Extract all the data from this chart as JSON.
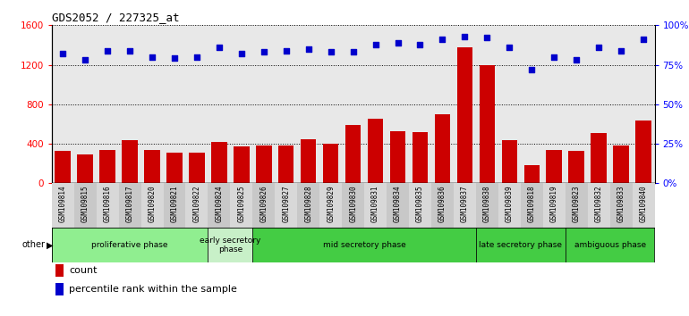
{
  "title": "GDS2052 / 227325_at",
  "samples": [
    "GSM109814",
    "GSM109815",
    "GSM109816",
    "GSM109817",
    "GSM109820",
    "GSM109821",
    "GSM109822",
    "GSM109824",
    "GSM109825",
    "GSM109826",
    "GSM109827",
    "GSM109828",
    "GSM109829",
    "GSM109830",
    "GSM109831",
    "GSM109834",
    "GSM109835",
    "GSM109836",
    "GSM109837",
    "GSM109838",
    "GSM109839",
    "GSM109818",
    "GSM109819",
    "GSM109823",
    "GSM109832",
    "GSM109833",
    "GSM109840"
  ],
  "counts": [
    330,
    290,
    340,
    440,
    340,
    310,
    310,
    420,
    370,
    380,
    380,
    450,
    400,
    590,
    650,
    530,
    520,
    700,
    1380,
    1200,
    440,
    180,
    340,
    330,
    510,
    380,
    640
  ],
  "percentile_ranks": [
    82,
    78,
    84,
    84,
    80,
    79,
    80,
    86,
    82,
    83,
    84,
    85,
    83,
    83,
    88,
    89,
    88,
    91,
    93,
    92,
    86,
    72,
    80,
    78,
    86,
    84,
    91
  ],
  "phases": [
    {
      "label": "proliferative phase",
      "start": 0,
      "end": 7,
      "color": "#90EE90"
    },
    {
      "label": "early secretory\nphase",
      "start": 7,
      "end": 9,
      "color": "#c8f0c8"
    },
    {
      "label": "mid secretory phase",
      "start": 9,
      "end": 19,
      "color": "#44cc44"
    },
    {
      "label": "late secretory phase",
      "start": 19,
      "end": 23,
      "color": "#44cc44"
    },
    {
      "label": "ambiguous phase",
      "start": 23,
      "end": 27,
      "color": "#44cc44"
    }
  ],
  "phase_boundaries": [
    7,
    9,
    19,
    23
  ],
  "bar_color": "#CC0000",
  "dot_color": "#0000CC",
  "left_yticks": [
    0,
    400,
    800,
    1200,
    1600
  ],
  "right_yticks": [
    0,
    25,
    50,
    75,
    100
  ],
  "ylim_left": [
    0,
    1600
  ],
  "ylim_right": [
    0,
    100
  ],
  "background_color": "#ffffff",
  "plot_bg_color": "#e8e8e8",
  "tick_bg_color": "#d0d0d0"
}
